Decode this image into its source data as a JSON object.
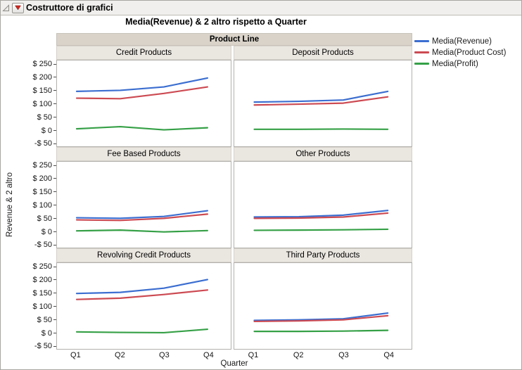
{
  "header": {
    "title": "Costruttore di grafici"
  },
  "icons": {
    "disclosure": "disclosure-triangle-icon",
    "red_triangle": "red-triangle-menu-icon",
    "red_triangle_color": "#cf2721"
  },
  "chart_data": {
    "type": "line",
    "title": "Media(Revenue) & 2 altro rispetto a Quarter",
    "xlabel": "Quarter",
    "ylabel": "Revenue & 2 altro",
    "facet_field": "Product Line",
    "legend_position": "right",
    "grid": false,
    "x_categories": [
      "Q1",
      "Q2",
      "Q3",
      "Q4"
    ],
    "ylim": [
      -62,
      266
    ],
    "y_ticks": [
      250,
      200,
      150,
      100,
      50,
      0,
      -50
    ],
    "y_tick_labels": [
      "$ 250",
      "$ 200",
      "$ 150",
      "$ 100",
      "$ 50",
      "$ 0",
      "-$ 50"
    ],
    "series": [
      {
        "name": "Media(Revenue)",
        "color": "#3b6ed0"
      },
      {
        "name": "Media(Product Cost)",
        "color": "#cc4a52"
      },
      {
        "name": "Media(Profit)",
        "color": "#35a046"
      }
    ],
    "panels": [
      {
        "title": "Credit Products",
        "series_values": [
          [
            148,
            152,
            165,
            199
          ],
          [
            122,
            120,
            140,
            165
          ],
          [
            5,
            13,
            1,
            9
          ]
        ]
      },
      {
        "title": "Deposit Products",
        "series_values": [
          [
            107,
            110,
            115,
            148
          ],
          [
            96,
            99,
            103,
            127
          ],
          [
            3,
            3,
            4,
            3
          ]
        ]
      },
      {
        "title": "Fee Based Products",
        "series_values": [
          [
            52,
            50,
            57,
            79
          ],
          [
            44,
            42,
            50,
            66
          ],
          [
            2,
            5,
            -2,
            3
          ]
        ]
      },
      {
        "title": "Other Products",
        "series_values": [
          [
            55,
            56,
            62,
            80
          ],
          [
            50,
            51,
            55,
            70
          ],
          [
            4,
            5,
            6,
            8
          ]
        ]
      },
      {
        "title": "Revolving Credit Products",
        "series_values": [
          [
            150,
            154,
            170,
            203
          ],
          [
            127,
            132,
            146,
            163
          ],
          [
            3,
            1,
            0,
            13
          ]
        ]
      },
      {
        "title": "Third Party Products",
        "series_values": [
          [
            47,
            49,
            53,
            75
          ],
          [
            43,
            45,
            49,
            65
          ],
          [
            5,
            5,
            6,
            9
          ]
        ]
      }
    ]
  }
}
